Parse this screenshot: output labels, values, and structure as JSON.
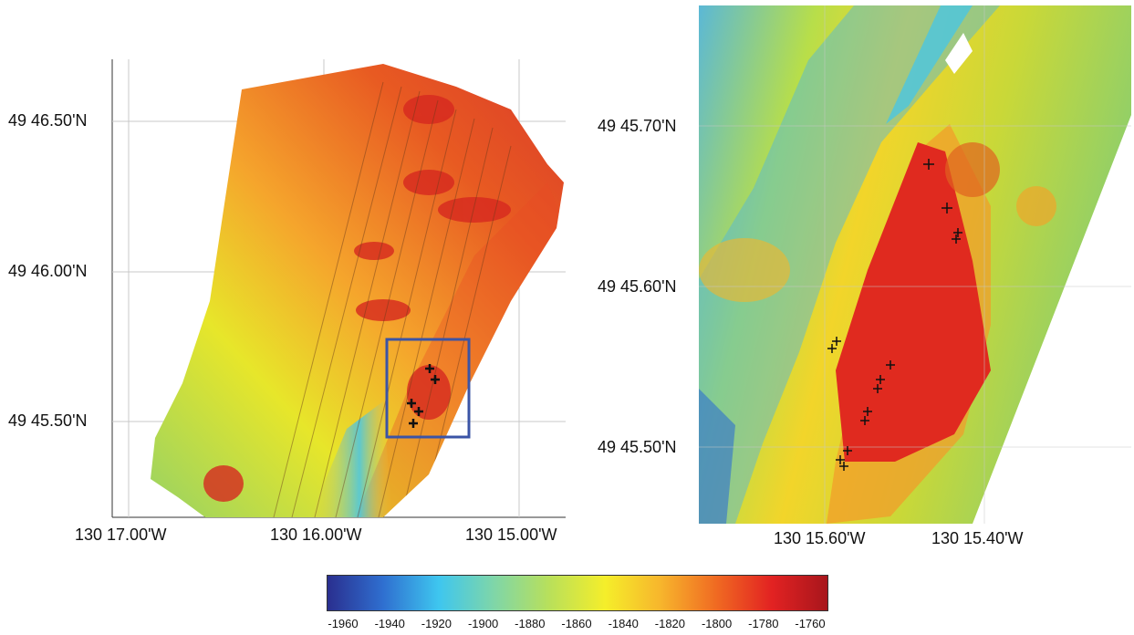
{
  "left_map": {
    "lat_labels": [
      "49 46.50'N",
      "49 46.00'N",
      "49 45.50'N"
    ],
    "lon_labels": [
      "130 17.00'W",
      "130 16.00'W",
      "130 15.00'W"
    ]
  },
  "right_map": {
    "lat_labels": [
      "49 45.70'N",
      "49 45.60'N",
      "49 45.50'N"
    ],
    "lon_labels": [
      "130 15.60'W",
      "130 15.40'W"
    ]
  },
  "colorbar": {
    "ticks": [
      "-1960",
      "-1940",
      "-1920",
      "-1900",
      "-1880",
      "-1860",
      "-1840",
      "-1820",
      "-1800",
      "-1780",
      "-1760"
    ],
    "colors": [
      "#2a2f8f",
      "#2f6fd0",
      "#3ec6ef",
      "#7fd6a8",
      "#b9e05a",
      "#f5ee2a",
      "#f7b52c",
      "#f06a22",
      "#e22222",
      "#a8161c"
    ]
  },
  "colors": {
    "inset_box": "#3b54a6",
    "marker": "#111111"
  }
}
